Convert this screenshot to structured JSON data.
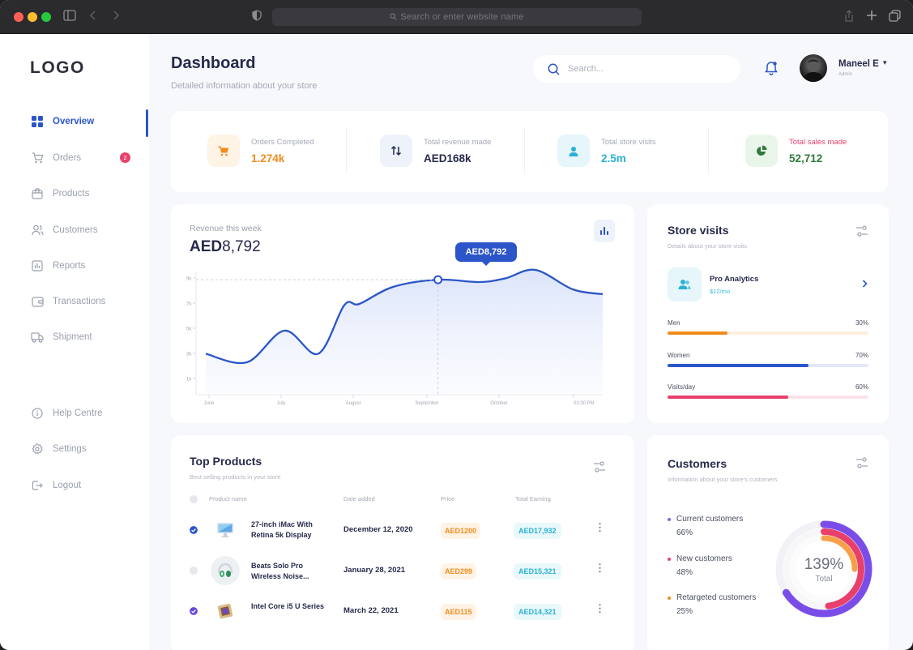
{
  "browser": {
    "url_placeholder": "Search or enter website name"
  },
  "sidebar": {
    "logo": "LOGO",
    "items": [
      {
        "label": "Overview",
        "icon": "grid-icon",
        "active": true
      },
      {
        "label": "Orders",
        "icon": "cart-icon",
        "badge": "2"
      },
      {
        "label": "Products",
        "icon": "box-icon"
      },
      {
        "label": "Customers",
        "icon": "users-icon"
      },
      {
        "label": "Reports",
        "icon": "report-icon"
      },
      {
        "label": "Transactions",
        "icon": "wallet-icon"
      },
      {
        "label": "Shipment",
        "icon": "truck-icon"
      }
    ],
    "bottom": [
      {
        "label": "Help Centre",
        "icon": "info-icon"
      },
      {
        "label": "Settings",
        "icon": "gear-icon"
      },
      {
        "label": "Logout",
        "icon": "logout-icon"
      }
    ]
  },
  "header": {
    "title": "Dashboard",
    "subtitle": "Detailed information about your store",
    "search_placeholder": "Search...",
    "user_name": "Maneel E",
    "user_role": "Admin"
  },
  "stats": [
    {
      "label": "Orders Completed",
      "value": "1.274k",
      "color": "#f08c1c",
      "bg": "#fff3e6"
    },
    {
      "label": "Total revenue made",
      "value": "AED168k",
      "color": "#262a4a",
      "bg": "#eef2fb"
    },
    {
      "label": "Total store visits",
      "value": "2.5m",
      "color": "#2ab1d4",
      "bg": "#e6f6fb"
    },
    {
      "label": "Total sales made",
      "value": "52,712",
      "color": "#2f7a3b",
      "bg": "#eaf5ea",
      "label_color": "#e8406b"
    }
  ],
  "revenue": {
    "label": "Revenue this week",
    "currency": "AED",
    "amount": "8,792",
    "tooltip": "AED8,792"
  },
  "chart_data": {
    "type": "area",
    "y_ticks": [
      "1k",
      "3k",
      "5k",
      "7k",
      "9k"
    ],
    "x_ticks": [
      "June",
      "July",
      "August",
      "September",
      "October",
      "03:30 PM"
    ],
    "ylim": [
      0,
      10000
    ],
    "x": [
      0,
      0.55,
      1.05,
      1.5,
      1.85,
      2.05,
      2.5,
      3.1,
      3.65,
      4.0,
      4.4,
      4.9,
      5.3
    ],
    "values": [
      2700,
      2000,
      4600,
      2700,
      6700,
      6800,
      8200,
      8792,
      8600,
      8900,
      9600,
      8000,
      7600
    ],
    "highlight_index": 7,
    "line_color": "#2b55c9",
    "fill_color": "#dfe7fb"
  },
  "store_visits": {
    "title": "Store visits",
    "subtitle": "Details about your store visits",
    "plan_name": "Pro Analytics",
    "plan_price": "$12/mo",
    "bars": [
      {
        "label": "Men",
        "pct_text": "30%",
        "pct": 30,
        "color": "#f08c1c",
        "track": "#fdeede"
      },
      {
        "label": "Women",
        "pct_text": "70%",
        "pct": 70,
        "color": "#2b55c9",
        "track": "#e3e9f8"
      },
      {
        "label": "Visits/day",
        "pct_text": "60%",
        "pct": 60,
        "color": "#e8406b",
        "track": "#fbe3ea"
      }
    ]
  },
  "top_products": {
    "title": "Top Products",
    "subtitle": "Best selling products in your store",
    "columns": [
      "Product name",
      "Date added",
      "Price",
      "Total Earning"
    ],
    "rows": [
      {
        "name": "27-inch iMac With Retina 5k Display",
        "date": "December 12, 2020",
        "price": "AED1200",
        "earning": "AED17,932",
        "checked": true,
        "check_color": "#2b55c9",
        "icon": "imac-icon"
      },
      {
        "name": "Beats Solo Pro Wireless Noise...",
        "date": "January 28, 2021",
        "price": "AED299",
        "earning": "AED15,321",
        "checked": false,
        "check_color": "#e6e8ee",
        "icon": "headphones-icon"
      },
      {
        "name": "Intel Core i5 U Series",
        "date": "March 22, 2021",
        "price": "AED115",
        "earning": "AED14,321",
        "checked": true,
        "check_color": "#6a45d8",
        "icon": "cpu-icon"
      }
    ]
  },
  "customers": {
    "title": "Customers",
    "subtitle": "Information about your store's customers",
    "legend": [
      {
        "label": "Current customers",
        "value": "66%",
        "color": "#8a63e8"
      },
      {
        "label": "New customers",
        "value": "48%",
        "color": "#e8406b"
      },
      {
        "label": "Retargeted customers",
        "value": "25%",
        "color": "#f08c1c"
      }
    ],
    "total_value": "139%",
    "total_label": "Total",
    "rings": [
      {
        "pct": 66,
        "color": "#7b4de8"
      },
      {
        "pct": 48,
        "color": "#e8406b"
      },
      {
        "pct": 25,
        "color": "#f7a04a"
      }
    ]
  }
}
